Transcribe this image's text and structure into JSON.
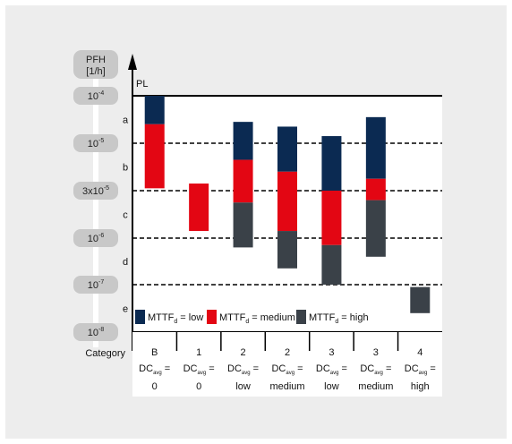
{
  "chart_data": {
    "type": "floating-bar",
    "y_axis": {
      "label_line1": "PFH",
      "label_line2": "[1/h]",
      "ticks": [
        {
          "base": "10",
          "exp": "-4"
        },
        {
          "base": "10",
          "exp": "-5"
        },
        {
          "base": "3x10",
          "exp": "-5"
        },
        {
          "base": "10",
          "exp": "-6"
        },
        {
          "base": "10",
          "exp": "-7"
        },
        {
          "base": "10",
          "exp": "-8"
        }
      ]
    },
    "pl_label": "PL",
    "pl_levels": [
      "a",
      "b",
      "c",
      "d",
      "e"
    ],
    "category_label": "Category",
    "colors": {
      "low": "#0b2a52",
      "medium": "#e30613",
      "high": "#3a4148",
      "pill": "#c8c8c8",
      "frame_bg": "#ededed"
    },
    "legend": [
      {
        "key": "low",
        "prefix": "MTTF",
        "sub": "d",
        "suffix": " = low"
      },
      {
        "key": "medium",
        "prefix": "MTTF",
        "sub": "d",
        "suffix": " = medium"
      },
      {
        "key": "high",
        "prefix": "MTTF",
        "sub": "d",
        "suffix": " = high"
      }
    ],
    "columns": [
      {
        "category": "B",
        "dc_prefix": "DC",
        "dc_sub": "avg",
        "dc_eq": " =",
        "dc_value": "0",
        "segments": [
          {
            "key": "low",
            "from": 0.6,
            "to": 0.0
          },
          {
            "key": "medium",
            "from": 1.95,
            "to": 0.6
          }
        ]
      },
      {
        "category": "1",
        "dc_prefix": "DC",
        "dc_sub": "avg",
        "dc_eq": " =",
        "dc_value": "0",
        "segments": [
          {
            "key": "medium",
            "from": 2.85,
            "to": 1.85
          }
        ]
      },
      {
        "category": "2",
        "dc_prefix": "DC",
        "dc_sub": "avg",
        "dc_eq": " =",
        "dc_value": "low",
        "segments": [
          {
            "key": "low",
            "from": 1.35,
            "to": 0.55
          },
          {
            "key": "medium",
            "from": 2.25,
            "to": 1.35
          },
          {
            "key": "high",
            "from": 3.2,
            "to": 2.25
          }
        ]
      },
      {
        "category": "2",
        "dc_prefix": "DC",
        "dc_sub": "avg",
        "dc_eq": " =",
        "dc_value": "medium",
        "segments": [
          {
            "key": "low",
            "from": 1.6,
            "to": 0.65
          },
          {
            "key": "medium",
            "from": 2.85,
            "to": 1.6
          },
          {
            "key": "high",
            "from": 3.65,
            "to": 2.85
          }
        ]
      },
      {
        "category": "3",
        "dc_prefix": "DC",
        "dc_sub": "avg",
        "dc_eq": " =",
        "dc_value": "low",
        "segments": [
          {
            "key": "low",
            "from": 2.0,
            "to": 0.85
          },
          {
            "key": "medium",
            "from": 3.15,
            "to": 2.0
          },
          {
            "key": "high",
            "from": 4.0,
            "to": 3.15
          }
        ]
      },
      {
        "category": "3",
        "dc_prefix": "DC",
        "dc_sub": "avg",
        "dc_eq": " =",
        "dc_value": "medium",
        "segments": [
          {
            "key": "low",
            "from": 1.75,
            "to": 0.45
          },
          {
            "key": "medium",
            "from": 2.2,
            "to": 1.75
          },
          {
            "key": "high",
            "from": 3.4,
            "to": 2.2
          }
        ],
        "note": "stacking order: low (top) / medium / high (bottom)"
      },
      {
        "category": "4",
        "dc_prefix": "DC",
        "dc_sub": "avg",
        "dc_eq": " =",
        "dc_value": "high",
        "segments": [
          {
            "key": "high",
            "from": 4.6,
            "to": 4.05
          }
        ]
      }
    ]
  }
}
